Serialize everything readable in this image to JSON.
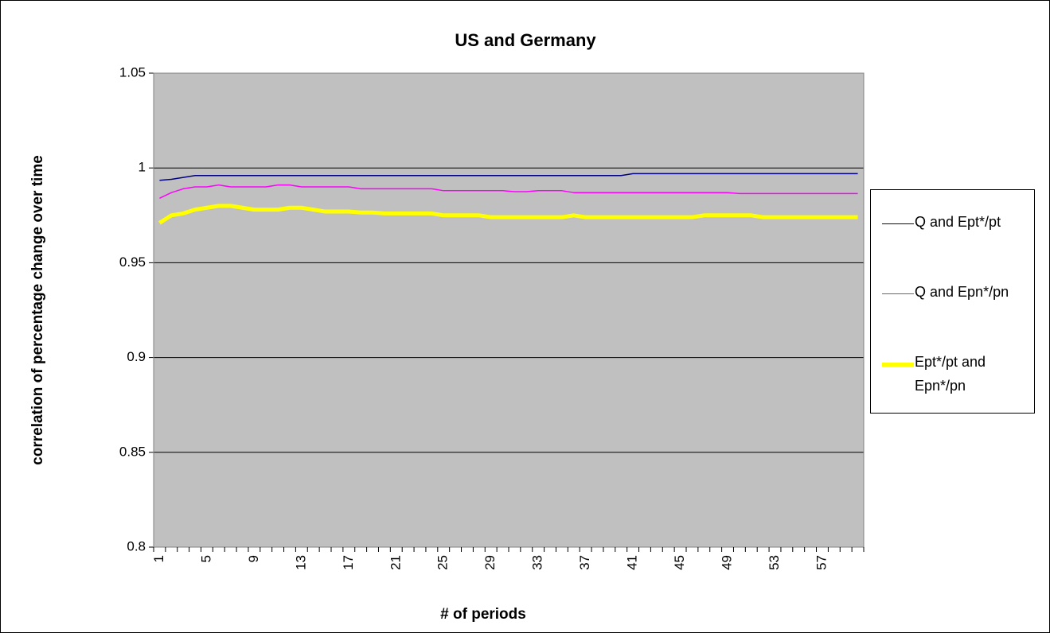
{
  "chart_data": {
    "type": "line",
    "title": "US and Germany",
    "x_label": "# of periods",
    "y_label": "correlation of percentage change over time",
    "categories": [
      "1",
      null,
      null,
      null,
      "5",
      null,
      null,
      null,
      "9",
      null,
      null,
      null,
      "13",
      null,
      null,
      null,
      "17",
      null,
      null,
      null,
      "21",
      null,
      null,
      null,
      "25",
      null,
      null,
      null,
      "29",
      null,
      null,
      null,
      "33",
      null,
      null,
      null,
      "37",
      null,
      null,
      null,
      "41",
      null,
      null,
      null,
      "45",
      null,
      null,
      null,
      "49",
      null,
      null,
      null,
      "53",
      null,
      null,
      null,
      "57",
      null,
      null,
      null
    ],
    "ylim": [
      0.8,
      1.05
    ],
    "yticks": [
      0.8,
      0.85,
      0.9,
      0.95,
      1,
      1.05
    ],
    "grid": true,
    "legend": "right",
    "series": [
      {
        "name": "Q and Ept*/pt",
        "color": "#000080",
        "width": 1.5,
        "values": [
          0.9935,
          0.994,
          0.995,
          0.996,
          0.996,
          0.996,
          0.996,
          0.996,
          0.996,
          0.996,
          0.996,
          0.996,
          0.996,
          0.996,
          0.996,
          0.996,
          0.996,
          0.996,
          0.996,
          0.996,
          0.996,
          0.996,
          0.996,
          0.996,
          0.996,
          0.996,
          0.996,
          0.996,
          0.996,
          0.996,
          0.996,
          0.996,
          0.996,
          0.996,
          0.996,
          0.996,
          0.996,
          0.996,
          0.996,
          0.996,
          0.997,
          0.997,
          0.997,
          0.997,
          0.997,
          0.997,
          0.997,
          0.997,
          0.997,
          0.997,
          0.997,
          0.997,
          0.997,
          0.997,
          0.997,
          0.997,
          0.997,
          0.997,
          0.997,
          0.997
        ]
      },
      {
        "name": "Q and Epn*/pn",
        "color": "#ff00ff",
        "width": 1.5,
        "values": [
          0.984,
          0.987,
          0.989,
          0.99,
          0.99,
          0.991,
          0.99,
          0.99,
          0.99,
          0.99,
          0.991,
          0.991,
          0.99,
          0.99,
          0.99,
          0.99,
          0.99,
          0.989,
          0.989,
          0.989,
          0.989,
          0.989,
          0.989,
          0.989,
          0.988,
          0.988,
          0.988,
          0.988,
          0.988,
          0.988,
          0.9875,
          0.9875,
          0.988,
          0.988,
          0.988,
          0.987,
          0.987,
          0.987,
          0.987,
          0.987,
          0.987,
          0.987,
          0.987,
          0.987,
          0.987,
          0.987,
          0.987,
          0.987,
          0.987,
          0.9865,
          0.9865,
          0.9865,
          0.9865,
          0.9865,
          0.9865,
          0.9865,
          0.9865,
          0.9865,
          0.9865,
          0.9865
        ]
      },
      {
        "name": "Ept*/pt and Epn*/pn",
        "color": "#ffff00",
        "width": 5,
        "values": [
          0.971,
          0.975,
          0.976,
          0.978,
          0.979,
          0.98,
          0.98,
          0.979,
          0.978,
          0.978,
          0.978,
          0.979,
          0.979,
          0.978,
          0.977,
          0.977,
          0.977,
          0.9765,
          0.9765,
          0.976,
          0.976,
          0.976,
          0.976,
          0.976,
          0.975,
          0.975,
          0.975,
          0.975,
          0.974,
          0.974,
          0.974,
          0.974,
          0.974,
          0.974,
          0.974,
          0.975,
          0.974,
          0.974,
          0.974,
          0.974,
          0.974,
          0.974,
          0.974,
          0.974,
          0.974,
          0.974,
          0.975,
          0.975,
          0.975,
          0.975,
          0.975,
          0.974,
          0.974,
          0.974,
          0.974,
          0.974,
          0.974,
          0.974,
          0.974,
          0.974
        ]
      }
    ]
  }
}
